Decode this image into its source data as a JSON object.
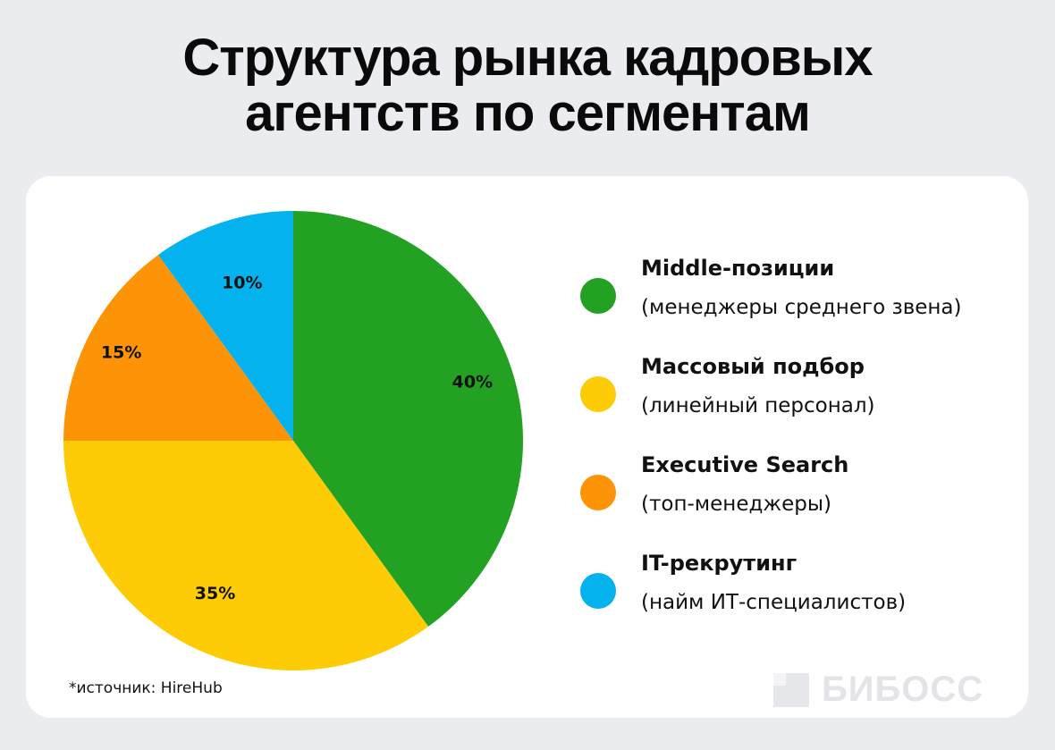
{
  "header": {
    "title_line1": "Структура рынка кадровых",
    "title_line2": "агентств по сегментам"
  },
  "chart_data": {
    "type": "pie",
    "slices": [
      {
        "name": "Middle-позиции",
        "subtitle": "(менеджеры среднего звена)",
        "value": 40,
        "label": "40%",
        "color": "#22a122"
      },
      {
        "name": "Массовый подбор",
        "subtitle": "(линейный персонал)",
        "value": 35,
        "label": "35%",
        "color": "#fdcc07"
      },
      {
        "name": "Executive Search",
        "subtitle": "(топ-менеджеры)",
        "value": 15,
        "label": "15%",
        "color": "#fd9407"
      },
      {
        "name": "IT-рекрутинг",
        "subtitle": "(найм ИТ-специалистов)",
        "value": 10,
        "label": "10%",
        "color": "#04b2ee"
      }
    ],
    "legend_position": "right"
  },
  "footer": {
    "source": "*источник: HireHub",
    "logo_text": "БИБОСС"
  }
}
